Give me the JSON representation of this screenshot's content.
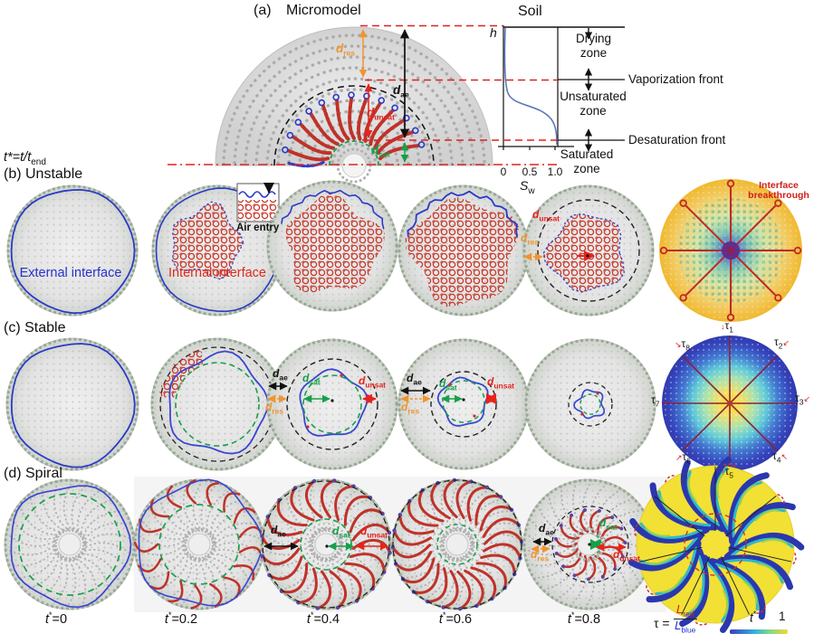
{
  "panel_a": {
    "index": "(a)",
    "micromodel_title": "Micromodel",
    "soil_title": "Soil",
    "h_label": "h",
    "x_ticks": [
      "0",
      "0.5",
      "1.0"
    ],
    "sw_base": "S",
    "sw_sub": "w",
    "drying_zone": [
      "Drying",
      "zone"
    ],
    "unsaturated_zone": [
      "Unsaturated",
      "zone"
    ],
    "saturated_zone": [
      "Saturated",
      "zone"
    ],
    "vaporization_front": "Vaporization front",
    "desaturation_front": "Desaturation front"
  },
  "d_parts": {
    "d": "d",
    "res": "res",
    "ae": "ae",
    "unsat": "unsat",
    "sat": "sat"
  },
  "time_def": {
    "lhs": "t*=t/t",
    "sub": "end"
  },
  "row_b": {
    "label": "(b) Unstable",
    "external": "External interface",
    "internal": "Internal interface",
    "air_entry": "Air entry",
    "breakthrough_1": "Interface",
    "breakthrough_2": "breakthrough"
  },
  "row_c": {
    "label": "(c) Stable",
    "tau": "τ",
    "tau_subs": [
      "1",
      "2",
      "3",
      "4",
      "5",
      "6",
      "7",
      "8"
    ]
  },
  "row_d": {
    "label": "(d) Spiral"
  },
  "timeline": {
    "t": "t",
    "star": "*",
    "eq": "=",
    "values": [
      "0",
      "0.2",
      "0.4",
      "0.6",
      "0.8"
    ]
  },
  "equation": {
    "tau": "τ",
    "equals": "=",
    "num_base": "L",
    "num_sub": "red",
    "den_base": "L",
    "den_sub": "blue"
  },
  "colorbar": {
    "t": "t",
    "star": "*",
    "max": "1"
  },
  "colors": {
    "external_interface": "#2433cc",
    "internal_interface": "#df2a1a",
    "d_res": "#f0942f",
    "d_ae": "#111111",
    "d_unsat": "#e8231c",
    "d_sat": "#16a04a",
    "annotation_red": "#d42020",
    "heat_low": "#3b3fc0",
    "heat_high": "#f2d93a"
  }
}
